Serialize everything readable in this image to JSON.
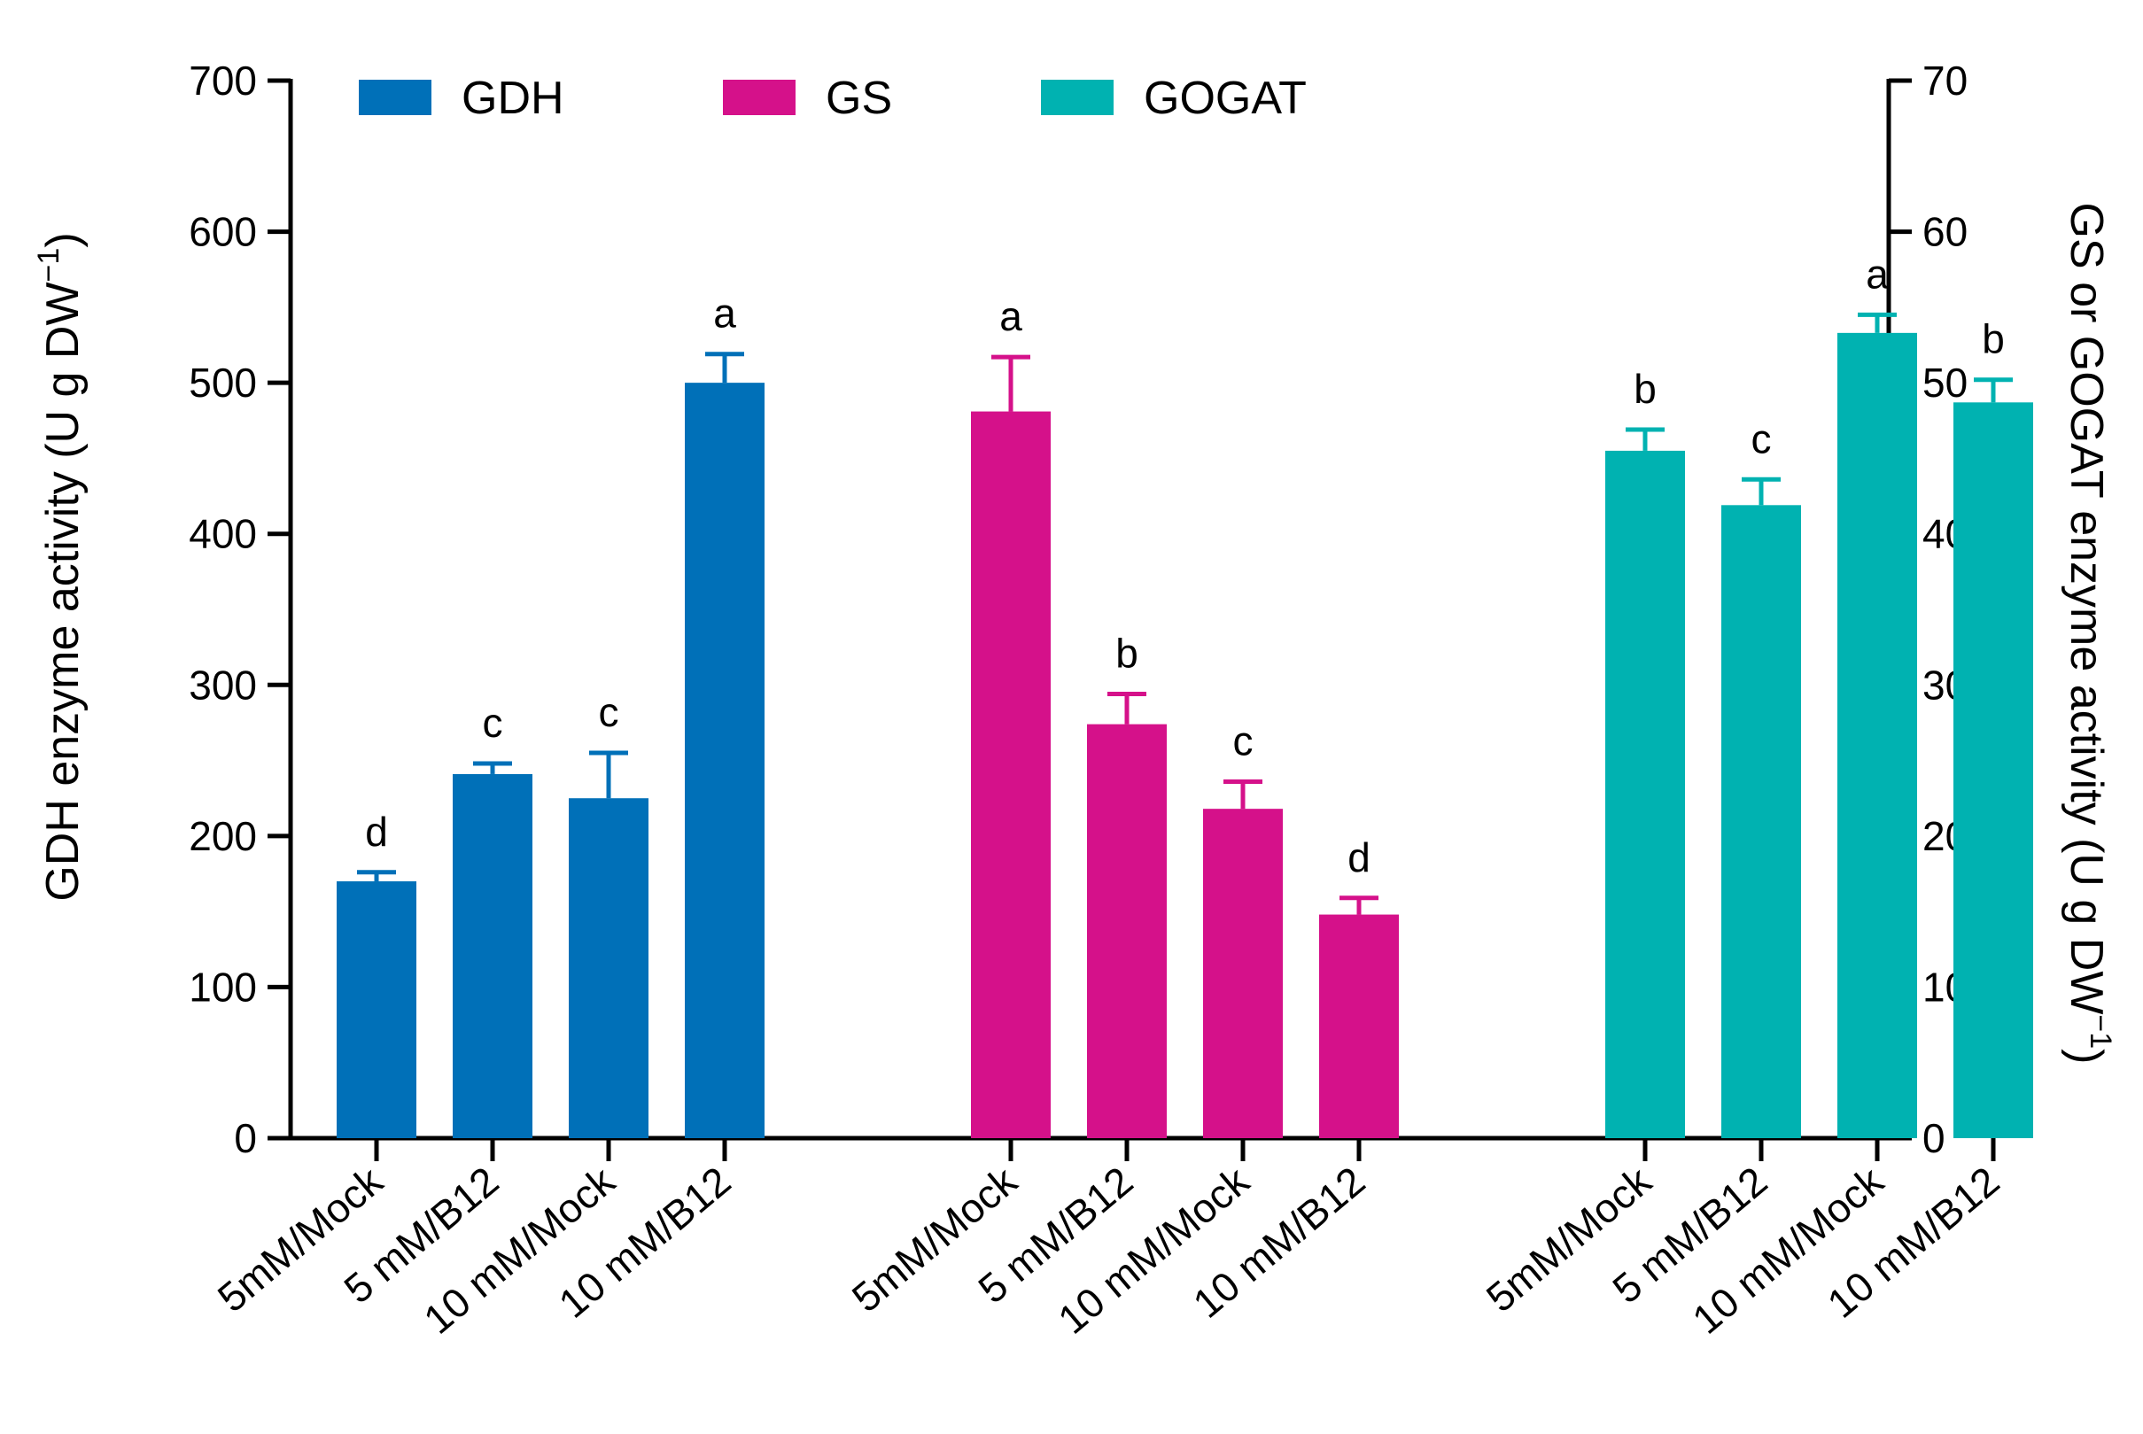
{
  "chart_data": {
    "type": "bar",
    "categories": [
      "5mM/Mock",
      "5 mM/B12",
      "10 mM/Mock",
      "10 mM/B12"
    ],
    "series": [
      {
        "name": "GDH",
        "axis": "left",
        "color": "#0070b8",
        "values": [
          170,
          241,
          225,
          500
        ],
        "errors": [
          6,
          7,
          30,
          19
        ],
        "letters": [
          "d",
          "c",
          "c",
          "a"
        ]
      },
      {
        "name": "GS",
        "axis": "right",
        "color": "#d5118a",
        "values": [
          48.1,
          27.4,
          21.8,
          14.8
        ],
        "errors": [
          3.6,
          2.0,
          1.8,
          1.1
        ],
        "letters": [
          "a",
          "b",
          "c",
          "d"
        ]
      },
      {
        "name": "GOGAT",
        "axis": "right",
        "color": "#00b2b1",
        "values": [
          45.5,
          41.9,
          53.3,
          48.7
        ],
        "errors": [
          1.4,
          1.7,
          1.2,
          1.5
        ],
        "letters": [
          "b",
          "c",
          "a",
          "b"
        ]
      }
    ],
    "y_left": {
      "label_main": "GDH enzyme activity (U g DW",
      "label_sup": "−1",
      "label_end": ")",
      "ylim": [
        0,
        700
      ],
      "ticks": [
        0,
        100,
        200,
        300,
        400,
        500,
        600,
        700
      ]
    },
    "y_right": {
      "label_main": "GS or GOGAT enzyme activity (U g DW",
      "label_sup": "−1",
      "label_end": ")",
      "ylim": [
        0,
        70
      ],
      "ticks": [
        0,
        10,
        20,
        30,
        40,
        50,
        60,
        70
      ]
    },
    "legend": {
      "placement": "top"
    },
    "grid": false
  }
}
